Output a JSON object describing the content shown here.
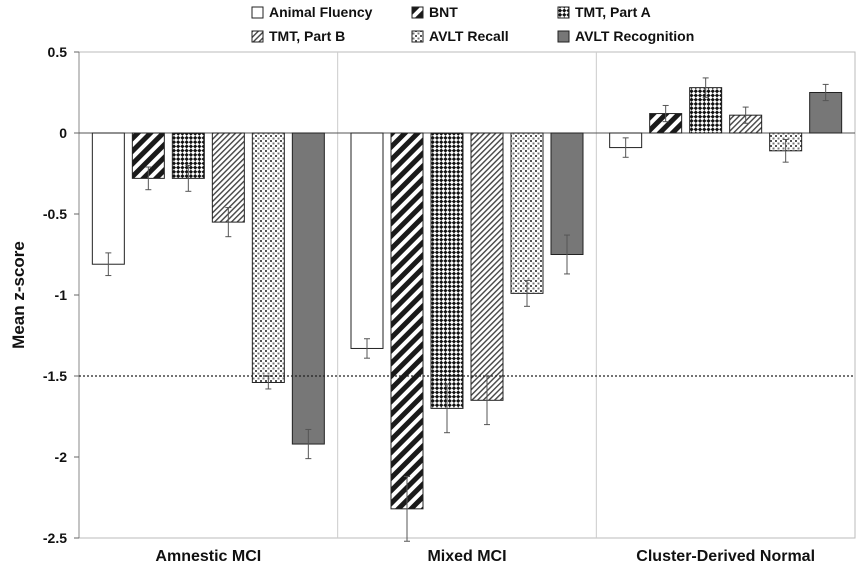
{
  "chart_data": {
    "type": "bar",
    "title": "",
    "xlabel": "",
    "ylabel": "Mean z-score",
    "ylim": [
      -2.5,
      0.5
    ],
    "yticks": [
      0.5,
      0,
      -0.5,
      -1,
      -1.5,
      -2,
      -2.5
    ],
    "ytick_labels": [
      "0.5",
      "0",
      "-0.5",
      "-1",
      "-1.5",
      "-2",
      "-2.5"
    ],
    "categories": [
      "Amnestic MCI",
      "Mixed MCI",
      "Cluster-Derived Normal"
    ],
    "reference_line": {
      "y": -1.5,
      "style": "dotted"
    },
    "legend_position": "top",
    "series": [
      {
        "name": "Animal Fluency",
        "pattern": "white",
        "values": [
          -0.81,
          -1.33,
          -0.09
        ],
        "errors": [
          0.07,
          0.06,
          0.06
        ]
      },
      {
        "name": "BNT",
        "pattern": "diagonal-stripes",
        "values": [
          -0.28,
          -2.32,
          0.12
        ],
        "errors": [
          0.07,
          0.2,
          0.05
        ]
      },
      {
        "name": "TMT, Part A",
        "pattern": "checkerboard",
        "values": [
          -0.28,
          -1.7,
          0.28
        ],
        "errors": [
          0.08,
          0.15,
          0.06
        ]
      },
      {
        "name": "TMT, Part B",
        "pattern": "fine-diagonal",
        "values": [
          -0.55,
          -1.65,
          0.11
        ],
        "errors": [
          0.09,
          0.15,
          0.05
        ]
      },
      {
        "name": "AVLT Recall",
        "pattern": "dots",
        "values": [
          -1.54,
          -0.99,
          -0.11
        ],
        "errors": [
          0.04,
          0.08,
          0.07
        ]
      },
      {
        "name": "AVLT Recognition",
        "pattern": "gray",
        "values": [
          -1.92,
          -0.75,
          0.25
        ],
        "errors": [
          0.09,
          0.12,
          0.05
        ]
      }
    ]
  }
}
